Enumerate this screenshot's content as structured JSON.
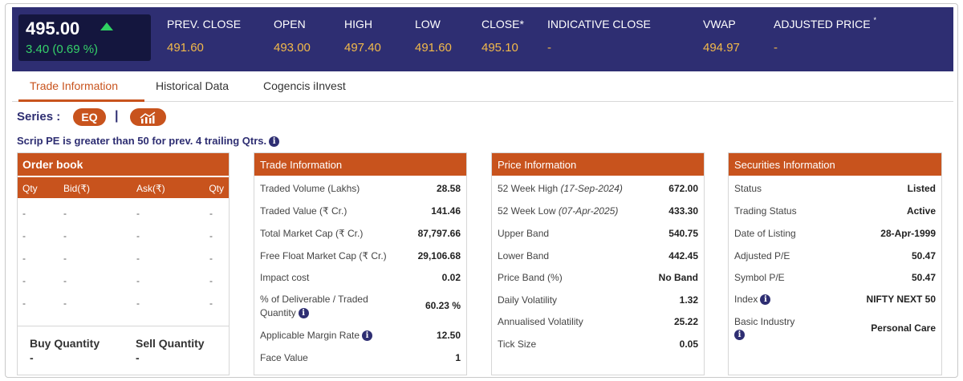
{
  "quote": {
    "last_price": "495.00",
    "change": "3.40 (0.69 %)",
    "stats": [
      {
        "label": "PREV. CLOSE",
        "value": "491.60"
      },
      {
        "label": "OPEN",
        "value": "493.00"
      },
      {
        "label": "HIGH",
        "value": "497.40"
      },
      {
        "label": "LOW",
        "value": "491.60"
      },
      {
        "label": "CLOSE*",
        "value": "495.10"
      },
      {
        "label": "INDICATIVE CLOSE",
        "value": "-"
      },
      {
        "label": "VWAP",
        "value": "494.97"
      },
      {
        "label": "ADJUSTED PRICE",
        "value": "-"
      }
    ],
    "adjusted_star": "*",
    "colors": {
      "header_bg": "#2e2e72",
      "price_bg": "#14163e",
      "up": "#36d16a",
      "value": "#f2b94a"
    }
  },
  "tabs": [
    "Trade Information",
    "Historical Data",
    "Cogencis iInvest"
  ],
  "series": {
    "label": "Series :",
    "badge": "EQ",
    "separator": "|",
    "chart_icon": "bar-chart-icon",
    "note": "Scrip PE is greater than 50 for prev. 4 trailing Qtrs."
  },
  "order_book": {
    "title": "Order book",
    "columns": [
      "Qty",
      "Bid(₹)",
      "Ask(₹)",
      "Qty"
    ],
    "rows": [
      [
        "-",
        "-",
        "-",
        "-"
      ],
      [
        "-",
        "-",
        "-",
        "-"
      ],
      [
        "-",
        "-",
        "-",
        "-"
      ],
      [
        "-",
        "-",
        "-",
        "-"
      ],
      [
        "-",
        "-",
        "-",
        "-"
      ]
    ],
    "buy_label": "Buy Quantity",
    "buy_value": "-",
    "sell_label": "Sell Quantity",
    "sell_value": "-"
  },
  "trade_info": {
    "title": "Trade Information",
    "rows": [
      {
        "label": "Traded Volume (Lakhs)",
        "value": "28.58"
      },
      {
        "label": "Traded Value (₹ Cr.)",
        "value": "141.46"
      },
      {
        "label": "Total Market Cap (₹ Cr.)",
        "value": "87,797.66"
      },
      {
        "label": "Free Float Market Cap (₹ Cr.)",
        "value": "29,106.68"
      },
      {
        "label": "Impact cost",
        "value": "0.02"
      },
      {
        "label": "% of Deliverable / Traded",
        "label2": "Quantity",
        "value": "60.23 %"
      },
      {
        "label": "Applicable Margin Rate",
        "value": "12.50"
      },
      {
        "label": "Face Value",
        "value": "1"
      }
    ]
  },
  "price_info": {
    "title": "Price Information",
    "rows": [
      {
        "label": "52 Week High",
        "date": "(17-Sep-2024)",
        "value": "672.00"
      },
      {
        "label": "52 Week Low",
        "date": "(07-Apr-2025)",
        "value": "433.30"
      },
      {
        "label": "Upper Band",
        "value": "540.75"
      },
      {
        "label": "Lower Band",
        "value": "442.45"
      },
      {
        "label": "Price Band (%)",
        "value": "No Band"
      },
      {
        "label": "Daily Volatility",
        "value": "1.32"
      },
      {
        "label": "Annualised Volatility",
        "value": "25.22"
      },
      {
        "label": "Tick Size",
        "value": "0.05"
      }
    ]
  },
  "securities_info": {
    "title": "Securities Information",
    "rows": [
      {
        "label": "Status",
        "value": "Listed"
      },
      {
        "label": "Trading Status",
        "value": "Active"
      },
      {
        "label": "Date of Listing",
        "value": "28-Apr-1999"
      },
      {
        "label": "Adjusted P/E",
        "value": "50.47"
      },
      {
        "label": "Symbol P/E",
        "value": "50.47"
      },
      {
        "label": "Index",
        "value": "NIFTY NEXT 50"
      },
      {
        "label": "Basic Industry",
        "value": "Personal Care"
      }
    ]
  }
}
